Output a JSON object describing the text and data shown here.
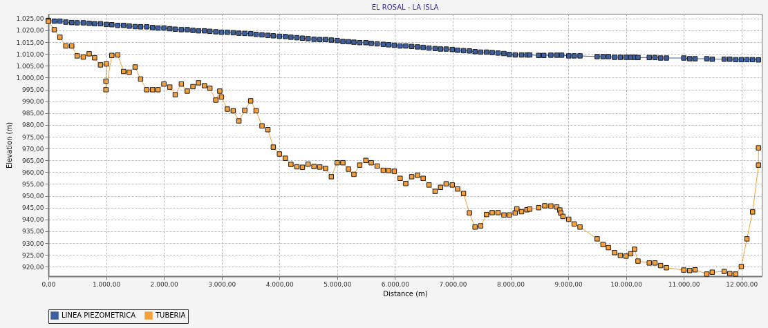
{
  "chart_data": {
    "type": "line",
    "title": "EL ROSAL - LA ISLA",
    "xlabel": "Distance (m)",
    "ylabel": "Elevation (m)",
    "marker": "square",
    "grid": true,
    "legend": "bottom",
    "line_style": "solid",
    "xlim": [
      0,
      12350
    ],
    "ylim": [
      916,
      1027
    ],
    "xticks": [
      {
        "value": 0,
        "label": "0,00"
      },
      {
        "value": 1000,
        "label": "1.000,00"
      },
      {
        "value": 2000,
        "label": "2.000,00"
      },
      {
        "value": 3000,
        "label": "3.000,00"
      },
      {
        "value": 4000,
        "label": "4.000,00"
      },
      {
        "value": 5000,
        "label": "5.000,00"
      },
      {
        "value": 6000,
        "label": "6.000,00"
      },
      {
        "value": 7000,
        "label": "7.000,00"
      },
      {
        "value": 8000,
        "label": "8.000,00"
      },
      {
        "value": 9000,
        "label": "9.000,00"
      },
      {
        "value": 10000,
        "label": "10.000,00"
      },
      {
        "value": 11000,
        "label": "11.000,00"
      },
      {
        "value": 12000,
        "label": "12.000,00"
      }
    ],
    "yticks": [
      {
        "value": 920,
        "label": "920,00"
      },
      {
        "value": 925,
        "label": "925,00"
      },
      {
        "value": 930,
        "label": "930,00"
      },
      {
        "value": 935,
        "label": "935,00"
      },
      {
        "value": 940,
        "label": "940,00"
      },
      {
        "value": 945,
        "label": "945,00"
      },
      {
        "value": 950,
        "label": "950,00"
      },
      {
        "value": 955,
        "label": "955,00"
      },
      {
        "value": 960,
        "label": "960,00"
      },
      {
        "value": 965,
        "label": "965,00"
      },
      {
        "value": 970,
        "label": "970,00"
      },
      {
        "value": 975,
        "label": "975,00"
      },
      {
        "value": 980,
        "label": "980,00"
      },
      {
        "value": 985,
        "label": "985,00"
      },
      {
        "value": 990,
        "label": "990,00"
      },
      {
        "value": 995,
        "label": "995,00"
      },
      {
        "value": 1000,
        "label": "1.000,00"
      },
      {
        "value": 1005,
        "label": "1.005,00"
      },
      {
        "value": 1010,
        "label": "1.010,00"
      },
      {
        "value": 1015,
        "label": "1.015,00"
      },
      {
        "value": 1020,
        "label": "1.020,00"
      },
      {
        "value": 1025,
        "label": "1.025,00"
      }
    ],
    "series": [
      {
        "name": "LINEA PIEZOMETRICA",
        "color": "#3d5f9e",
        "x": [
          0,
          102,
          200,
          302,
          404,
          498,
          604,
          706,
          800,
          902,
          1004,
          1098,
          1200,
          1302,
          1400,
          1502,
          1596,
          1702,
          1804,
          1898,
          2000,
          2102,
          2196,
          2302,
          2404,
          2502,
          2600,
          2702,
          2796,
          2898,
          2996,
          3098,
          3200,
          3298,
          3400,
          3502,
          3596,
          3698,
          3800,
          3894,
          4000,
          4102,
          4199,
          4301,
          4398,
          4496,
          4598,
          4699,
          4797,
          4898,
          5000,
          5098,
          5195,
          5289,
          5390,
          5496,
          5589,
          5691,
          5797,
          5890,
          5988,
          6089,
          6187,
          6289,
          6390,
          6488,
          6589,
          6695,
          6789,
          6886,
          6992,
          7085,
          7187,
          7289,
          7386,
          7484,
          7585,
          7683,
          7785,
          7886,
          7980,
          8081,
          8191,
          8285,
          8333,
          8488,
          8577,
          8699,
          8801,
          8886,
          9008,
          9102,
          9203,
          9500,
          9602,
          9695,
          9801,
          9902,
          10000,
          10081,
          10146,
          10207,
          10402,
          10500,
          10598,
          10699,
          11000,
          11102,
          11195,
          11398,
          11492,
          11699,
          11797,
          11898,
          11996,
          12093,
          12191,
          12293
        ],
        "values": [
          1024.2,
          1023.9,
          1023.9,
          1023.5,
          1023.3,
          1023.2,
          1023.2,
          1023.0,
          1022.8,
          1022.8,
          1022.5,
          1022.4,
          1022.1,
          1022.1,
          1021.8,
          1021.6,
          1021.5,
          1021.5,
          1021.2,
          1021.0,
          1021.0,
          1020.7,
          1020.5,
          1020.3,
          1020.3,
          1020.0,
          1019.8,
          1019.8,
          1019.6,
          1019.4,
          1019.2,
          1019.2,
          1019.0,
          1018.8,
          1018.7,
          1018.6,
          1018.3,
          1018.1,
          1017.9,
          1017.7,
          1017.5,
          1017.4,
          1017.1,
          1016.9,
          1016.7,
          1016.5,
          1016.2,
          1016.1,
          1016.1,
          1015.9,
          1015.7,
          1015.3,
          1015.2,
          1015.0,
          1014.8,
          1014.8,
          1014.5,
          1014.3,
          1014.1,
          1013.9,
          1013.7,
          1013.4,
          1013.4,
          1013.2,
          1013.0,
          1012.8,
          1012.5,
          1012.3,
          1012.1,
          1012.1,
          1011.9,
          1011.6,
          1011.4,
          1011.3,
          1011.0,
          1010.8,
          1010.8,
          1010.6,
          1010.4,
          1010.2,
          1009.8,
          1009.6,
          1009.6,
          1009.6,
          1009.6,
          1009.4,
          1009.4,
          1009.5,
          1009.5,
          1009.5,
          1009.2,
          1009.2,
          1009.2,
          1008.9,
          1008.9,
          1008.9,
          1008.6,
          1008.6,
          1008.6,
          1008.6,
          1008.6,
          1008.5,
          1008.5,
          1008.5,
          1008.3,
          1008.3,
          1008.3,
          1008.0,
          1008.0,
          1008.0,
          1007.8,
          1007.8,
          1007.8,
          1007.6,
          1007.6,
          1007.6,
          1007.6,
          1007.5
        ]
      },
      {
        "name": "TUBERIA",
        "color": "#f5a03a",
        "x": [
          0,
          102,
          200,
          302,
          404,
          498,
          604,
          706,
          800,
          902,
          1004,
          996,
          996,
          1098,
          1200,
          1302,
          1400,
          1502,
          1596,
          1702,
          1804,
          1898,
          2000,
          2102,
          2196,
          2302,
          2404,
          2502,
          2600,
          2702,
          2796,
          2898,
          2967,
          2996,
          3098,
          3200,
          3298,
          3400,
          3502,
          3596,
          3698,
          3800,
          3894,
          4000,
          4102,
          4199,
          4301,
          4398,
          4496,
          4598,
          4699,
          4797,
          4898,
          5000,
          5098,
          5195,
          5289,
          5390,
          5496,
          5589,
          5691,
          5797,
          5890,
          5988,
          6089,
          6187,
          6289,
          6390,
          6488,
          6589,
          6695,
          6789,
          6886,
          6992,
          7085,
          7187,
          7289,
          7386,
          7484,
          7585,
          7683,
          7785,
          7886,
          7980,
          8081,
          8110,
          8191,
          8285,
          8333,
          8488,
          8593,
          8699,
          8801,
          8854,
          8870,
          8907,
          9008,
          9102,
          9203,
          9500,
          9602,
          9695,
          9801,
          9902,
          10000,
          10081,
          10146,
          10207,
          10402,
          10500,
          10598,
          10699,
          11000,
          11102,
          11195,
          11398,
          11492,
          11699,
          11797,
          11898,
          11996,
          12093,
          12191,
          12293,
          12293
        ],
        "values": [
          1023.8,
          1020.3,
          1017.1,
          1013.4,
          1013.4,
          1009.2,
          1008.7,
          1010.1,
          1008.4,
          1005.4,
          1005.8,
          998.5,
          994.9,
          1009.4,
          1009.6,
          1002.6,
          1002.3,
          1004.5,
          999.4,
          994.9,
          994.9,
          994.9,
          997.3,
          996.0,
          992.8,
          997.3,
          994.3,
          996.2,
          997.8,
          996.6,
          995.5,
          990.5,
          994.3,
          991.8,
          986.7,
          986.0,
          981.7,
          986.2,
          990.2,
          986.0,
          979.6,
          978.0,
          970.6,
          967.7,
          965.9,
          963.3,
          962.3,
          962.1,
          963.4,
          962.4,
          962.2,
          961.6,
          958.1,
          964.0,
          964.0,
          961.3,
          959.1,
          963.0,
          965.0,
          964.0,
          962.6,
          960.8,
          960.7,
          960.4,
          957.4,
          955.2,
          958.1,
          958.7,
          957.4,
          954.6,
          951.9,
          953.6,
          955.1,
          954.6,
          952.9,
          951.0,
          942.8,
          936.8,
          937.3,
          942.1,
          942.9,
          942.9,
          941.9,
          941.9,
          942.8,
          944.5,
          943.3,
          944.1,
          944.4,
          945.0,
          945.8,
          945.7,
          945.3,
          944.0,
          942.7,
          941.3,
          940.1,
          938.1,
          936.8,
          931.8,
          929.4,
          928.1,
          926.0,
          924.8,
          924.5,
          925.5,
          927.4,
          922.4,
          921.6,
          921.6,
          920.5,
          919.6,
          918.6,
          918.4,
          918.7,
          916.9,
          917.7,
          918.0,
          917.1,
          916.9,
          920.1,
          931.8,
          943.2,
          963.0,
          970.3
        ]
      }
    ]
  }
}
